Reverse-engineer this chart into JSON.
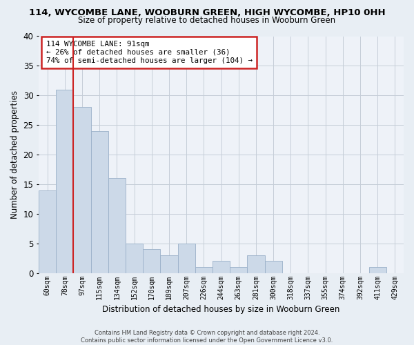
{
  "title": "114, WYCOMBE LANE, WOOBURN GREEN, HIGH WYCOMBE, HP10 0HH",
  "subtitle": "Size of property relative to detached houses in Wooburn Green",
  "xlabel": "Distribution of detached houses by size in Wooburn Green",
  "ylabel": "Number of detached properties",
  "bar_labels": [
    "60sqm",
    "78sqm",
    "97sqm",
    "115sqm",
    "134sqm",
    "152sqm",
    "170sqm",
    "189sqm",
    "207sqm",
    "226sqm",
    "244sqm",
    "263sqm",
    "281sqm",
    "300sqm",
    "318sqm",
    "337sqm",
    "355sqm",
    "374sqm",
    "392sqm",
    "411sqm",
    "429sqm"
  ],
  "bar_values": [
    14,
    31,
    28,
    24,
    16,
    5,
    4,
    3,
    5,
    1,
    2,
    1,
    3,
    2,
    0,
    0,
    0,
    0,
    0,
    1,
    0
  ],
  "bar_color": "#ccd9e8",
  "bar_edge_color": "#9ab0c8",
  "vline_index": 1.5,
  "vline_color": "#cc2222",
  "ylim": [
    0,
    40
  ],
  "yticks": [
    0,
    5,
    10,
    15,
    20,
    25,
    30,
    35,
    40
  ],
  "annotation_line1": "114 WYCOMBE LANE: 91sqm",
  "annotation_line2": "← 26% of detached houses are smaller (36)",
  "annotation_line3": "74% of semi-detached houses are larger (104) →",
  "annotation_box_color": "#ffffff",
  "annotation_box_edge": "#cc2222",
  "footer_line1": "Contains HM Land Registry data © Crown copyright and database right 2024.",
  "footer_line2": "Contains public sector information licensed under the Open Government Licence v3.0.",
  "bg_color": "#e8eef4",
  "plot_bg_color": "#eef2f8",
  "grid_color": "#c5cdd8"
}
